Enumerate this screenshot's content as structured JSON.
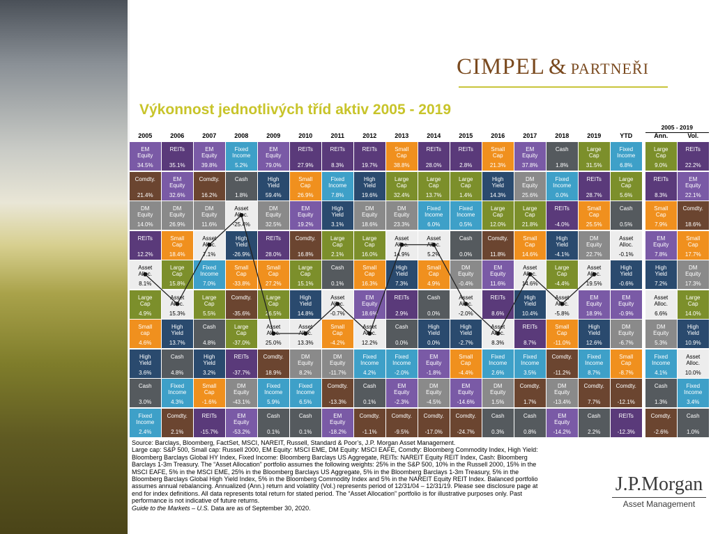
{
  "title": "Výkonnost jednotlivých tříd aktiv 2005 - 2019",
  "logo": {
    "main": "CIMPEL",
    "amp": "&",
    "sub": "PARTNEŘI"
  },
  "jpmorgan": {
    "name": "J.P.Morgan",
    "sub": "Asset Management"
  },
  "range_header": "2005 - 2019",
  "columns": [
    "2005",
    "2006",
    "2007",
    "2008",
    "2009",
    "2010",
    "2011",
    "2012",
    "2013",
    "2014",
    "2015",
    "2016",
    "2017",
    "2018",
    "2019",
    "YTD",
    "Ann.",
    "Vol."
  ],
  "colors": {
    "EM Equity": "#7a5aa6",
    "REITs": "#5a3a7a",
    "Fixed Income": "#3ea0c8",
    "Small Cap": "#f0901e",
    "Comdty.": "#6b4530",
    "DM Equity": "#8a8a8a",
    "High Yield": "#2a4a6e",
    "Large Cap": "#7c8f2b",
    "Cash": "#555a5e",
    "Asset Alloc.": "#ededed"
  },
  "table": [
    [
      [
        "EM Equity",
        "34.5%"
      ],
      [
        "REITs",
        "35.1%"
      ],
      [
        "EM Equity",
        "39.8%"
      ],
      [
        "Fixed Income",
        "5.2%"
      ],
      [
        "EM Equity",
        "79.0%"
      ],
      [
        "REITs",
        "27.9%"
      ],
      [
        "REITs",
        "8.3%"
      ],
      [
        "REITs",
        "19.7%"
      ],
      [
        "Small Cap",
        "38.8%"
      ],
      [
        "REITs",
        "28.0%"
      ],
      [
        "REITs",
        "2.8%"
      ],
      [
        "Small Cap",
        "21.3%"
      ],
      [
        "EM Equity",
        "37.8%"
      ],
      [
        "Cash",
        "1.8%"
      ],
      [
        "Large Cap",
        "31.5%"
      ],
      [
        "Fixed Income",
        "6.8%"
      ],
      [
        "Large Cap",
        "9.0%"
      ],
      [
        "REITs",
        "22.2%"
      ]
    ],
    [
      [
        "Comdty.",
        "21.4%"
      ],
      [
        "EM Equity",
        "32.6%"
      ],
      [
        "Comdty.",
        "16.2%"
      ],
      [
        "Cash",
        "1.8%"
      ],
      [
        "High Yield",
        "59.4%"
      ],
      [
        "Small Cap",
        "26.9%"
      ],
      [
        "Fixed Income",
        "7.8%"
      ],
      [
        "High Yield",
        "19.6%"
      ],
      [
        "Large Cap",
        "32.4%"
      ],
      [
        "Large Cap",
        "13.7%"
      ],
      [
        "Large Cap",
        "1.4%"
      ],
      [
        "High Yield",
        "14.3%"
      ],
      [
        "DM Equity",
        "25.6%"
      ],
      [
        "Fixed Income",
        "0.0%"
      ],
      [
        "REITs",
        "28.7%"
      ],
      [
        "Large Cap",
        "5.6%"
      ],
      [
        "REITs",
        "8.3%"
      ],
      [
        "EM Equity",
        "22.1%"
      ]
    ],
    [
      [
        "DM Equity",
        "14.0%"
      ],
      [
        "DM Equity",
        "26.9%"
      ],
      [
        "DM Equity",
        "11.6%"
      ],
      [
        "Asset Alloc.",
        "-25.4%"
      ],
      [
        "DM Equity",
        "32.5%"
      ],
      [
        "EM Equity",
        "19.2%"
      ],
      [
        "High Yield",
        "3.1%"
      ],
      [
        "DM Equity",
        "18.6%"
      ],
      [
        "DM Equity",
        "23.3%"
      ],
      [
        "Fixed Income",
        "6.0%"
      ],
      [
        "Fixed Income",
        "0.5%"
      ],
      [
        "Large Cap",
        "12.0%"
      ],
      [
        "Large Cap",
        "21.8%"
      ],
      [
        "REITs",
        "-4.0%"
      ],
      [
        "Small Cap",
        "25.5%"
      ],
      [
        "Cash",
        "0.5%"
      ],
      [
        "Small Cap",
        "7.9%"
      ],
      [
        "Comdty.",
        "18.6%"
      ]
    ],
    [
      [
        "REITs",
        "12.2%"
      ],
      [
        "Small Cap",
        "18.4%"
      ],
      [
        "Asset Alloc.",
        "7.1%"
      ],
      [
        "High Yield",
        "-26.9%"
      ],
      [
        "REITs",
        "28.0%"
      ],
      [
        "Comdty.",
        "16.8%"
      ],
      [
        "Large Cap",
        "2.1%"
      ],
      [
        "Large Cap",
        "16.0%"
      ],
      [
        "Asset Alloc.",
        "14.9%"
      ],
      [
        "Asset Alloc.",
        "5.2%"
      ],
      [
        "Cash",
        "0.0%"
      ],
      [
        "Comdty.",
        "11.8%"
      ],
      [
        "Small Cap",
        "14.6%"
      ],
      [
        "High Yield",
        "-4.1%"
      ],
      [
        "DM Equity",
        "22.7%"
      ],
      [
        "Asset Alloc.",
        "-0.1%"
      ],
      [
        "EM Equity",
        "7.8%"
      ],
      [
        "Small Cap",
        "17.7%"
      ]
    ],
    [
      [
        "Asset Alloc.",
        "8.1%"
      ],
      [
        "Large Cap",
        "15.8%"
      ],
      [
        "Fixed Income",
        "7.0%"
      ],
      [
        "Small Cap",
        "-33.8%"
      ],
      [
        "Small Cap",
        "27.2%"
      ],
      [
        "Large Cap",
        "15.1%"
      ],
      [
        "Cash",
        "0.1%"
      ],
      [
        "Small Cap",
        "16.3%"
      ],
      [
        "High Yield",
        "7.3%"
      ],
      [
        "Small Cap",
        "4.9%"
      ],
      [
        "DM Equity",
        "-0.4%"
      ],
      [
        "EM Equity",
        "11.6%"
      ],
      [
        "Asset Alloc.",
        "14.6%"
      ],
      [
        "Large Cap",
        "-4.4%"
      ],
      [
        "Asset Alloc.",
        "19.5%"
      ],
      [
        "High Yield",
        "-0.6%"
      ],
      [
        "High Yield",
        "7.2%"
      ],
      [
        "DM Equity",
        "17.3%"
      ]
    ],
    [
      [
        "Large Cap",
        "4.9%"
      ],
      [
        "Asset Alloc.",
        "15.3%"
      ],
      [
        "Large Cap",
        "5.5%"
      ],
      [
        "Comdty.",
        "-35.6%"
      ],
      [
        "Large Cap",
        "26.5%"
      ],
      [
        "High Yield",
        "14.8%"
      ],
      [
        "Asset Alloc.",
        "-0.7%"
      ],
      [
        "EM Equity",
        "18.6%"
      ],
      [
        "REITs",
        "2.9%"
      ],
      [
        "Cash",
        "0.0%"
      ],
      [
        "Asset Alloc.",
        "-2.0%"
      ],
      [
        "REITs",
        "8.6%"
      ],
      [
        "High Yield",
        "10.4%"
      ],
      [
        "Asset Alloc.",
        "-5.8%"
      ],
      [
        "EM Equity",
        "18.9%"
      ],
      [
        "EM Equity",
        "-0.9%"
      ],
      [
        "Asset Alloc.",
        "6.6%"
      ],
      [
        "Large Cap",
        "14.0%"
      ]
    ],
    [
      [
        "Small cap",
        "4.6%"
      ],
      [
        "High Yield",
        "13.7%"
      ],
      [
        "Cash",
        "4.8%"
      ],
      [
        "Large Cap",
        "-37.0%"
      ],
      [
        "Asset Alloc.",
        "25.0%"
      ],
      [
        "Asset Alloc.",
        "13.3%"
      ],
      [
        "Small Cap",
        "-4.2%"
      ],
      [
        "Asset Alloc.",
        "12.2%"
      ],
      [
        "Cash",
        "0.0%"
      ],
      [
        "High Yield",
        "0.0%"
      ],
      [
        "High Yield",
        "-2.7%"
      ],
      [
        "Asset Alloc.",
        "8.3%"
      ],
      [
        "REITs",
        "8.7%"
      ],
      [
        "Small Cap",
        "-11.0%"
      ],
      [
        "High Yield",
        "12.6%"
      ],
      [
        "DM Equity",
        "-6.7%"
      ],
      [
        "DM Equity",
        "5.3%"
      ],
      [
        "High Yield",
        "10.9%"
      ]
    ],
    [
      [
        "High Yield",
        "3.6%"
      ],
      [
        "Cash",
        "4.8%"
      ],
      [
        "High Yield",
        "3.2%"
      ],
      [
        "REITs",
        "-37.7%"
      ],
      [
        "Comdty.",
        "18.9%"
      ],
      [
        "DM Equity",
        "8.2%"
      ],
      [
        "DM Equity",
        "-11.7%"
      ],
      [
        "Fixed Income",
        "4.2%"
      ],
      [
        "Fixed Income",
        "-2.0%"
      ],
      [
        "EM Equity",
        "-1.8%"
      ],
      [
        "Small Cap",
        "-4.4%"
      ],
      [
        "Fixed Income",
        "2.6%"
      ],
      [
        "Fixed Income",
        "3.5%"
      ],
      [
        "Comdty.",
        "-11.2%"
      ],
      [
        "Fixed Income",
        "8.7%"
      ],
      [
        "Small Cap",
        "-8.7%"
      ],
      [
        "Fixed Income",
        "4.1%"
      ],
      [
        "Asset Alloc.",
        "10.0%"
      ]
    ],
    [
      [
        "Cash",
        "3.0%"
      ],
      [
        "Fixed Income",
        "4.3%"
      ],
      [
        "Small Cap",
        "-1.6%"
      ],
      [
        "DM Equity",
        "-43.1%"
      ],
      [
        "Fixed Income",
        "5.9%"
      ],
      [
        "Fixed Income",
        "6.5%"
      ],
      [
        "Comdty.",
        "-13.3%"
      ],
      [
        "Cash",
        "0.1%"
      ],
      [
        "EM Equity",
        "-2.3%"
      ],
      [
        "DM Equity",
        "-4.5%"
      ],
      [
        "EM Equity",
        "-14.6%"
      ],
      [
        "DM Equity",
        "1.5%"
      ],
      [
        "Comdty.",
        "1.7%"
      ],
      [
        "DM Equity",
        "-13.4%"
      ],
      [
        "Comdty.",
        "7.7%"
      ],
      [
        "Comdty.",
        "-12.1%"
      ],
      [
        "Cash",
        "1.3%"
      ],
      [
        "Fixed Income",
        "3.4%"
      ]
    ],
    [
      [
        "Fixed Income",
        "2.4%"
      ],
      [
        "Comdty.",
        "2.1%"
      ],
      [
        "REITs",
        "-15.7%"
      ],
      [
        "EM Equity",
        "-53.2%"
      ],
      [
        "Cash",
        "0.1%"
      ],
      [
        "Cash",
        "0.1%"
      ],
      [
        "EM Equity",
        "-18.2%"
      ],
      [
        "Comdty.",
        "-1.1%"
      ],
      [
        "Comdty.",
        "-9.5%"
      ],
      [
        "Comdty.",
        "-17.0%"
      ],
      [
        "Comdty.",
        "-24.7%"
      ],
      [
        "Cash",
        "0.3%"
      ],
      [
        "Cash",
        "0.8%"
      ],
      [
        "EM Equity",
        "-14.2%"
      ],
      [
        "Cash",
        "2.2%"
      ],
      [
        "REITs",
        "-12.3%"
      ],
      [
        "Comdty.",
        "-2.6%"
      ],
      [
        "Cash",
        "1.0%"
      ]
    ]
  ],
  "source": [
    "Source: Barclays, Bloomberg, FactSet, MSCI, NAREIT, Russell, Standard & Poor’s, J.P. Morgan Asset Management.",
    "Large cap: S&P 500, Small cap: Russell 2000, EM Equity: MSCI EME, DM Equity: MSCI EAFE, Comdty: Bloomberg Commodity Index, High Yield:",
    "Bloomberg Barclays Global HY Index, Fixed Income: Bloomberg Barclays US Aggregate, REITs: NAREIT Equity REIT Index, Cash: Bloomberg",
    "Barclays 1-3m Treasury. The “Asset Allocation” portfolio assumes the following weights: 25% in the S&P 500, 10% in the Russell 2000, 15% in the",
    "MSCI EAFE, 5% in the MSCI EME, 25% in the Bloomberg Barclays US Aggregate, 5% in the Bloomberg Barclays 1-3m Treasury, 5% in the",
    "Bloomberg Barclays Global High Yield Index, 5% in the Bloomberg Commodity Index and 5% in the NAREIT Equity REIT Index. Balanced portfolio",
    "assumes annual rebalancing. Annualized (Ann.) return and volatility (Vol.) represents period of 12/31/04 – 12/31/19. Please see disclosure page at",
    "end for index definitions. All data represents total return for stated period. The “Asset Allocation” portfolio is for illustrative purposes only. Past",
    "performance is not indicative of future returns."
  ],
  "source_italic": "Guide to the Markets – U.S.",
  "source_tail": " Data are as of September 30, 2020."
}
